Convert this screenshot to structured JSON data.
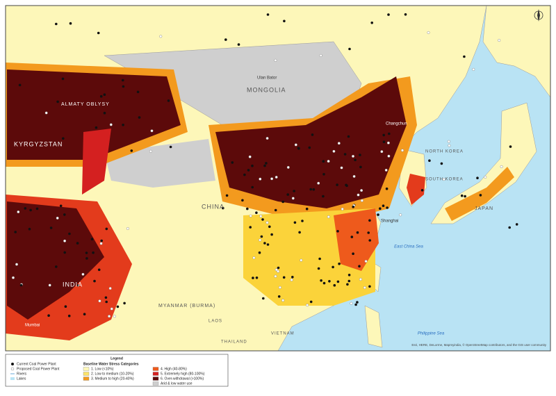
{
  "map": {
    "countries": [
      "MONGOLIA",
      "CHINA",
      "KYRGYZSTAN",
      "ALMATY OBLYSY",
      "NORTH KOREA",
      "SOUTH KOREA",
      "JAPAN",
      "MYANMAR (BURMA)",
      "LAOS",
      "THAILAND",
      "VIETNAM",
      "INDIA"
    ],
    "cities": [
      "Ulan Bator",
      "Changchun",
      "Shanghai",
      "Mumbai"
    ],
    "seas": [
      "East China Sea",
      "Philippine Sea"
    ],
    "attribution": "Esri, HERE, DeLorme, Mapmyindia, © OpenStreetMap contributors, and the GIS user community",
    "legend": {
      "title": "Legend",
      "points": [
        "Current Coal Power Plant",
        "Proposed Coal Power Plant",
        "Rivers",
        "Lakes"
      ],
      "stress_title": "Baseline Water Stress Categories",
      "stress": [
        "1. Low (<10%)",
        "2. Low to medium (10-20%)",
        "3. Medium to high (20-40%)",
        "4. High (40-80%)",
        "5. Extremely high (80-100%)",
        "6. Over-withdrawal (>100%)",
        "Arid & low water use"
      ]
    }
  }
}
